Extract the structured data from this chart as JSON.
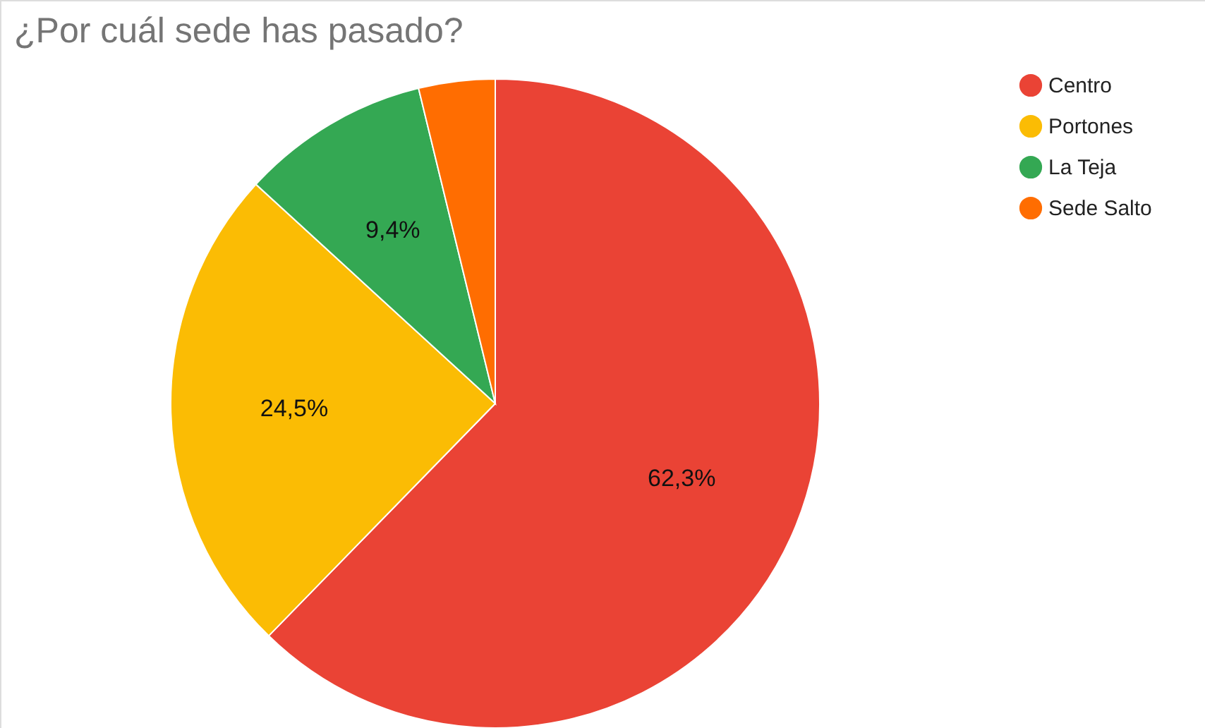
{
  "chart_data": {
    "type": "pie",
    "title": "¿Por cuál sede has pasado?",
    "categories": [
      "Centro",
      "Portones",
      "La Teja",
      "Sede Salto"
    ],
    "values": [
      62.3,
      24.5,
      9.4,
      3.8
    ],
    "colors": [
      "#ea4335",
      "#fbbc04",
      "#34a853",
      "#ff6d01"
    ],
    "value_labels": [
      "62,3%",
      "24,5%",
      "9,4%",
      null
    ],
    "legend": "right"
  }
}
